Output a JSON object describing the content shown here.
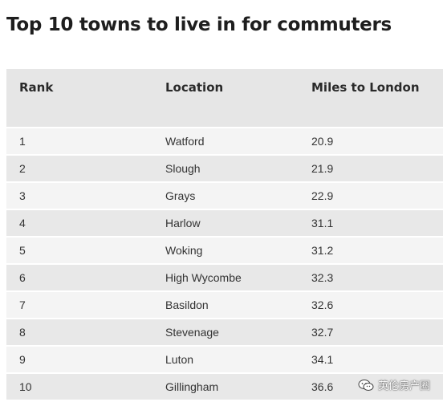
{
  "title": "Top 10 towns to live in for commuters",
  "table": {
    "headers": [
      "Rank",
      "Location",
      "Miles to London"
    ],
    "rows": [
      [
        "1",
        "Watford",
        "20.9"
      ],
      [
        "2",
        "Slough",
        "21.9"
      ],
      [
        "3",
        "Grays",
        "22.9"
      ],
      [
        "4",
        "Harlow",
        "31.1"
      ],
      [
        "5",
        "Woking",
        "31.2"
      ],
      [
        "6",
        "High Wycombe",
        "32.3"
      ],
      [
        "7",
        "Basildon",
        "32.6"
      ],
      [
        "8",
        "Stevenage",
        "32.7"
      ],
      [
        "9",
        "Luton",
        "34.1"
      ],
      [
        "10",
        "Gillingham",
        "36.6"
      ]
    ]
  },
  "watermark": {
    "icon": "wechat-icon",
    "text": "英伦房产圈"
  }
}
